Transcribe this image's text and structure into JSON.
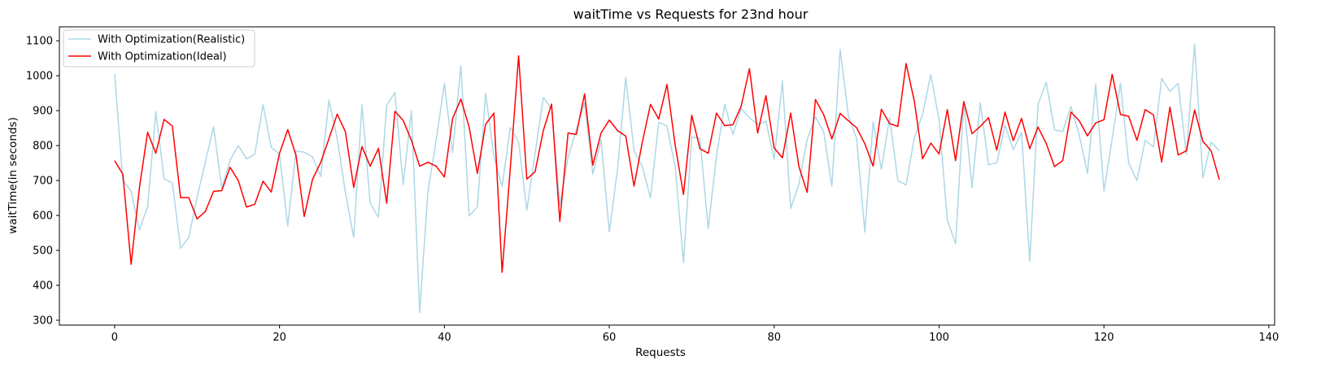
{
  "chart_data": {
    "type": "line",
    "title": "waitTime vs Requests for 23nd hour",
    "xlabel": "Requests",
    "ylabel": "waitTime(in seconds)",
    "xlim": [
      -6.7,
      140.7
    ],
    "ylim": [
      286,
      1140
    ],
    "xticks": [
      0,
      20,
      40,
      60,
      80,
      100,
      120,
      140
    ],
    "yticks": [
      300,
      400,
      500,
      600,
      700,
      800,
      900,
      1000,
      1100
    ],
    "grid": false,
    "legend_position": "top-left",
    "series": [
      {
        "name": "With Optimization(Realistic)",
        "color": "#add8e6",
        "values": [
          1005,
          700,
          670,
          558,
          625,
          897,
          705,
          693,
          506,
          537,
          652,
          752,
          854,
          678,
          758,
          800,
          762,
          775,
          917,
          795,
          775,
          570,
          785,
          781,
          768,
          712,
          930,
          820,
          665,
          537,
          917,
          635,
          595,
          915,
          952,
          688,
          900,
          322,
          668,
          815,
          978,
          780,
          1028,
          598,
          625,
          950,
          770,
          683,
          852,
          810,
          615,
          778,
          938,
          905,
          632,
          766,
          845,
          923,
          718,
          817,
          553,
          733,
          995,
          786,
          740,
          650,
          867,
          856,
          738,
          465,
          825,
          820,
          562,
          770,
          918,
          832,
          906,
          880,
          860,
          870,
          760,
          985,
          620,
          690,
          818,
          882,
          840,
          683,
          1075,
          885,
          820,
          552,
          868,
          732,
          880,
          700,
          687,
          823,
          890,
          1003,
          873,
          587,
          519,
          923,
          680,
          923,
          745,
          751,
          858,
          788,
          838,
          468,
          917,
          982,
          845,
          840,
          912,
          830,
          720,
          975,
          670,
          820,
          978,
          750,
          700,
          815,
          796,
          992,
          955,
          978,
          775,
          1090,
          708,
          810,
          785
        ],
        "width": 1.5
      },
      {
        "name": "With Optimization(Ideal)",
        "color": "#ff0000",
        "values": [
          757,
          718,
          460,
          678,
          838,
          778,
          875,
          856,
          651,
          651,
          590,
          611,
          669,
          671,
          738,
          700,
          624,
          632,
          698,
          667,
          778,
          846,
          772,
          597,
          703,
          752,
          820,
          890,
          839,
          680,
          797,
          741,
          792,
          635,
          898,
          872,
          815,
          741,
          752,
          741,
          710,
          878,
          933,
          853,
          720,
          861,
          893,
          437,
          737,
          1057,
          704,
          725,
          843,
          919,
          583,
          836,
          832,
          948,
          744,
          836,
          873,
          843,
          827,
          684,
          809,
          918,
          876,
          975,
          800,
          660,
          887,
          791,
          778,
          893,
          857,
          860,
          913,
          1020,
          836,
          943,
          793,
          765,
          893,
          740,
          666,
          932,
          889,
          819,
          892,
          871,
          851,
          805,
          741,
          904,
          863,
          855,
          1035,
          927,
          762,
          807,
          776,
          903,
          757,
          926,
          834,
          855,
          880,
          787,
          896,
          814,
          878,
          791,
          853,
          806,
          740,
          757,
          896,
          871,
          828,
          865,
          874,
          1004,
          889,
          884,
          815,
          903,
          888,
          753,
          910,
          773,
          785,
          902,
          812,
          785,
          702
        ],
        "width": 1.5
      }
    ]
  }
}
